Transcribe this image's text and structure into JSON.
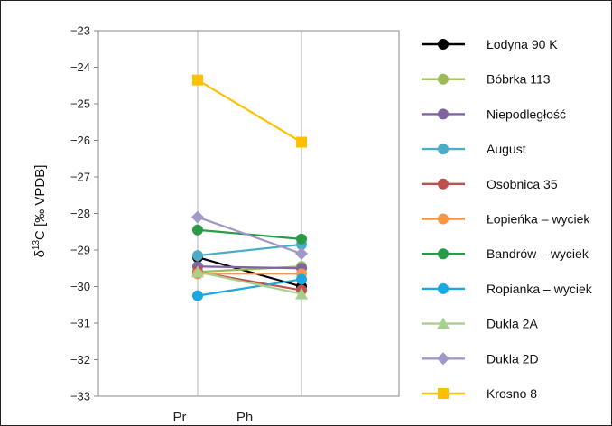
{
  "chart_data": {
    "type": "line",
    "x_positions": [
      "Pr",
      "Ph"
    ],
    "x_tick_labels": [
      "Pr",
      "Ph"
    ],
    "ylabel_main": "δ",
    "ylabel_sup": "13",
    "ylabel_rest": "C [‰ VPDB]",
    "ylim": [
      -33,
      -23
    ],
    "yticks": [
      "−23",
      "−24",
      "−25",
      "−26",
      "−27",
      "−28",
      "−29",
      "−30",
      "−31",
      "−32",
      "−33"
    ],
    "grid": "vertical",
    "legend_position": "right",
    "series": [
      {
        "name": "Łodyna 90 K",
        "color": "#000000",
        "marker": "circle",
        "values": [
          -29.2,
          -30.0
        ]
      },
      {
        "name": "Bóbrka 113",
        "color": "#9bbb59",
        "marker": "circle",
        "values": [
          -29.6,
          -29.45
        ]
      },
      {
        "name": "Niepodległość",
        "color": "#8064a2",
        "marker": "circle",
        "values": [
          -29.45,
          -29.5
        ]
      },
      {
        "name": "August",
        "color": "#4bacc6",
        "marker": "circle",
        "values": [
          -29.15,
          -28.85
        ]
      },
      {
        "name": "Osobnica 35",
        "color": "#c0504d",
        "marker": "circle",
        "values": [
          -29.6,
          -30.1
        ]
      },
      {
        "name": "Łopieńka – wyciek",
        "color": "#f79646",
        "marker": "circle",
        "values": [
          -29.65,
          -29.65
        ]
      },
      {
        "name": "Bandrów – wyciek",
        "color": "#2a9a48",
        "marker": "circle",
        "values": [
          -28.45,
          -28.7
        ]
      },
      {
        "name": "Ropianka – wyciek",
        "color": "#1ba8e0",
        "marker": "circle",
        "values": [
          -30.25,
          -29.8
        ]
      },
      {
        "name": "Dukla 2A",
        "color": "#a8cf8b",
        "marker": "triangle",
        "values": [
          -29.6,
          -30.2
        ]
      },
      {
        "name": "Dukla 2D",
        "color": "#a396c8",
        "marker": "diamond",
        "values": [
          -28.1,
          -29.1
        ]
      },
      {
        "name": "Krosno 8",
        "color": "#ffc000",
        "marker": "square",
        "values": [
          -24.35,
          -26.05
        ]
      }
    ]
  }
}
